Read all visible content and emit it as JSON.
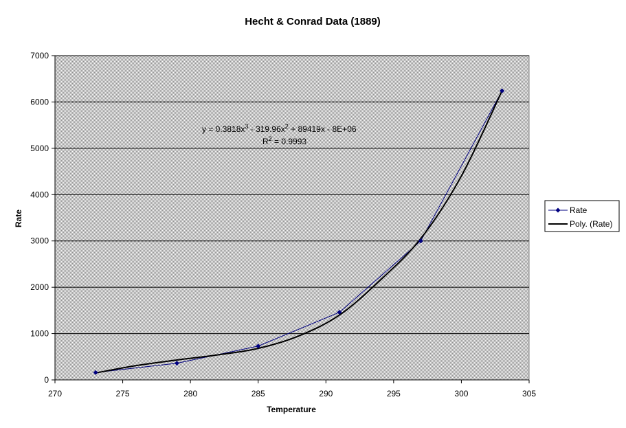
{
  "chart_data": {
    "type": "scatter",
    "title": "Hecht & Conrad Data (1889)",
    "xlabel": "Temperature",
    "ylabel": "Rate",
    "xlim": [
      270,
      305
    ],
    "ylim": [
      0,
      7000
    ],
    "x_ticks": [
      270,
      275,
      280,
      285,
      290,
      295,
      300,
      305
    ],
    "y_ticks": [
      0,
      1000,
      2000,
      3000,
      4000,
      5000,
      6000,
      7000
    ],
    "grid": "horizontal",
    "plot_background": "#c0c0c0",
    "legend_position": "right",
    "series": [
      {
        "name": "Rate",
        "color": "#000080",
        "marker": "diamond",
        "x": [
          273,
          279,
          285,
          291,
          297,
          303
        ],
        "y": [
          160,
          360,
          730,
          1460,
          3000,
          6240
        ]
      }
    ],
    "trendline": {
      "name": "Poly. (Rate)",
      "type": "polynomial",
      "order": 3,
      "color": "#000000",
      "x": [
        273,
        276,
        279,
        282,
        285,
        288,
        291,
        294,
        297,
        300,
        303
      ],
      "y": [
        150,
        310,
        430,
        540,
        680,
        950,
        1400,
        2150,
        3050,
        4400,
        6240
      ],
      "equation": {
        "prefix": "y = 0.3818x",
        "sup1": "3",
        "mid": " - 319.96x",
        "sup2": "2",
        "suffix": " + 89419x - 8E+06"
      },
      "r_squared": {
        "prefix": "R",
        "sup": "2",
        "suffix": " = 0.9993"
      }
    }
  }
}
